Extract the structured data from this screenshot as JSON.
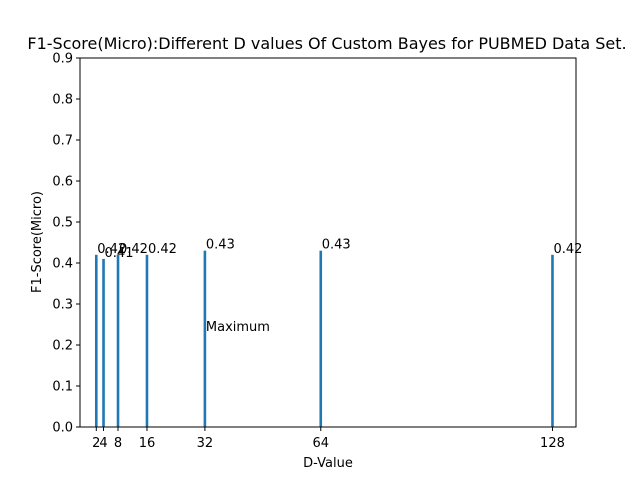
{
  "chart_data": {
    "type": "bar",
    "title": "F1-Score(Micro):Different D values Of Custom Bayes for PUBMED Data Set.",
    "xlabel": "D-Value",
    "ylabel": "F1-Score(Micro)",
    "x": [
      2,
      4,
      8,
      16,
      32,
      64,
      128
    ],
    "values": [
      0.42,
      0.41,
      0.42,
      0.42,
      0.43,
      0.43,
      0.42
    ],
    "data_labels": [
      "0.42",
      "0.41",
      "0.42",
      "0.42",
      "0.43",
      "0.43",
      "0.42"
    ],
    "xticks": [
      2,
      4,
      8,
      16,
      32,
      64,
      128
    ],
    "xtick_labels": [
      "2",
      "4",
      "8",
      "16",
      "32",
      "64",
      "128"
    ],
    "ylim": [
      0.0,
      0.9
    ],
    "yticks": [
      0.0,
      0.1,
      0.2,
      0.3,
      0.4,
      0.5,
      0.6,
      0.7,
      0.8,
      0.9
    ],
    "ytick_labels": [
      "0.0",
      "0.1",
      "0.2",
      "0.3",
      "0.4",
      "0.5",
      "0.6",
      "0.7",
      "0.8",
      "0.9"
    ],
    "annotation": {
      "text": "Maximum",
      "x": 32,
      "y": 0.22
    },
    "bar_color": "#1f77b4",
    "grid": false,
    "legend": "none"
  }
}
